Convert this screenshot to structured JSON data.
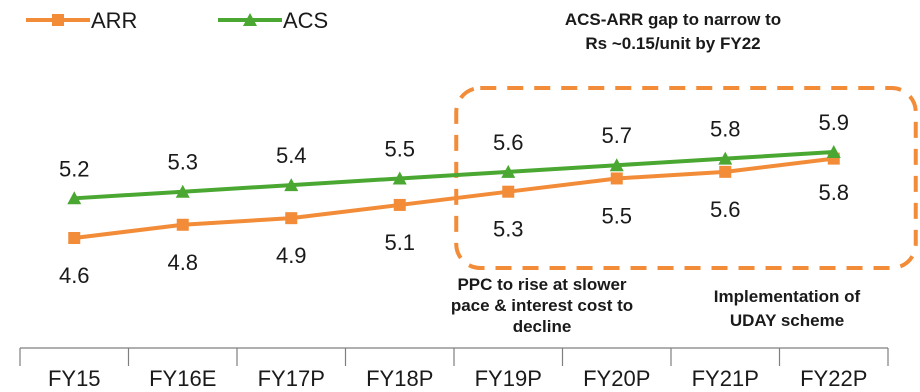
{
  "chart_data": {
    "type": "line",
    "categories": [
      "FY15",
      "FY16E",
      "FY17P",
      "FY18P",
      "FY19P",
      "FY20P",
      "FY21P",
      "FY22P"
    ],
    "series": [
      {
        "name": "ARR",
        "values": [
          4.6,
          4.8,
          4.9,
          5.1,
          5.3,
          5.5,
          5.6,
          5.8
        ],
        "color": "#f28c38",
        "marker": "square"
      },
      {
        "name": "ACS",
        "values": [
          5.2,
          5.3,
          5.4,
          5.5,
          5.6,
          5.7,
          5.8,
          5.9
        ],
        "color": "#4aa832",
        "marker": "triangle"
      }
    ],
    "annotations": [
      {
        "id": "gap",
        "lines": [
          "ACS-ARR gap to narrow to",
          "Rs ~0.15/unit by FY22"
        ]
      },
      {
        "id": "ppc",
        "lines": [
          "PPC to rise at slower",
          "pace & interest cost to",
          "decline"
        ]
      },
      {
        "id": "uday",
        "lines": [
          "Implementation of",
          "UDAY scheme"
        ]
      }
    ],
    "highlight_box": {
      "from_category": "FY19P",
      "to_category": "FY22P",
      "color": "#f28c38",
      "style": "dashed"
    },
    "legend": "top-left",
    "grid": false
  }
}
